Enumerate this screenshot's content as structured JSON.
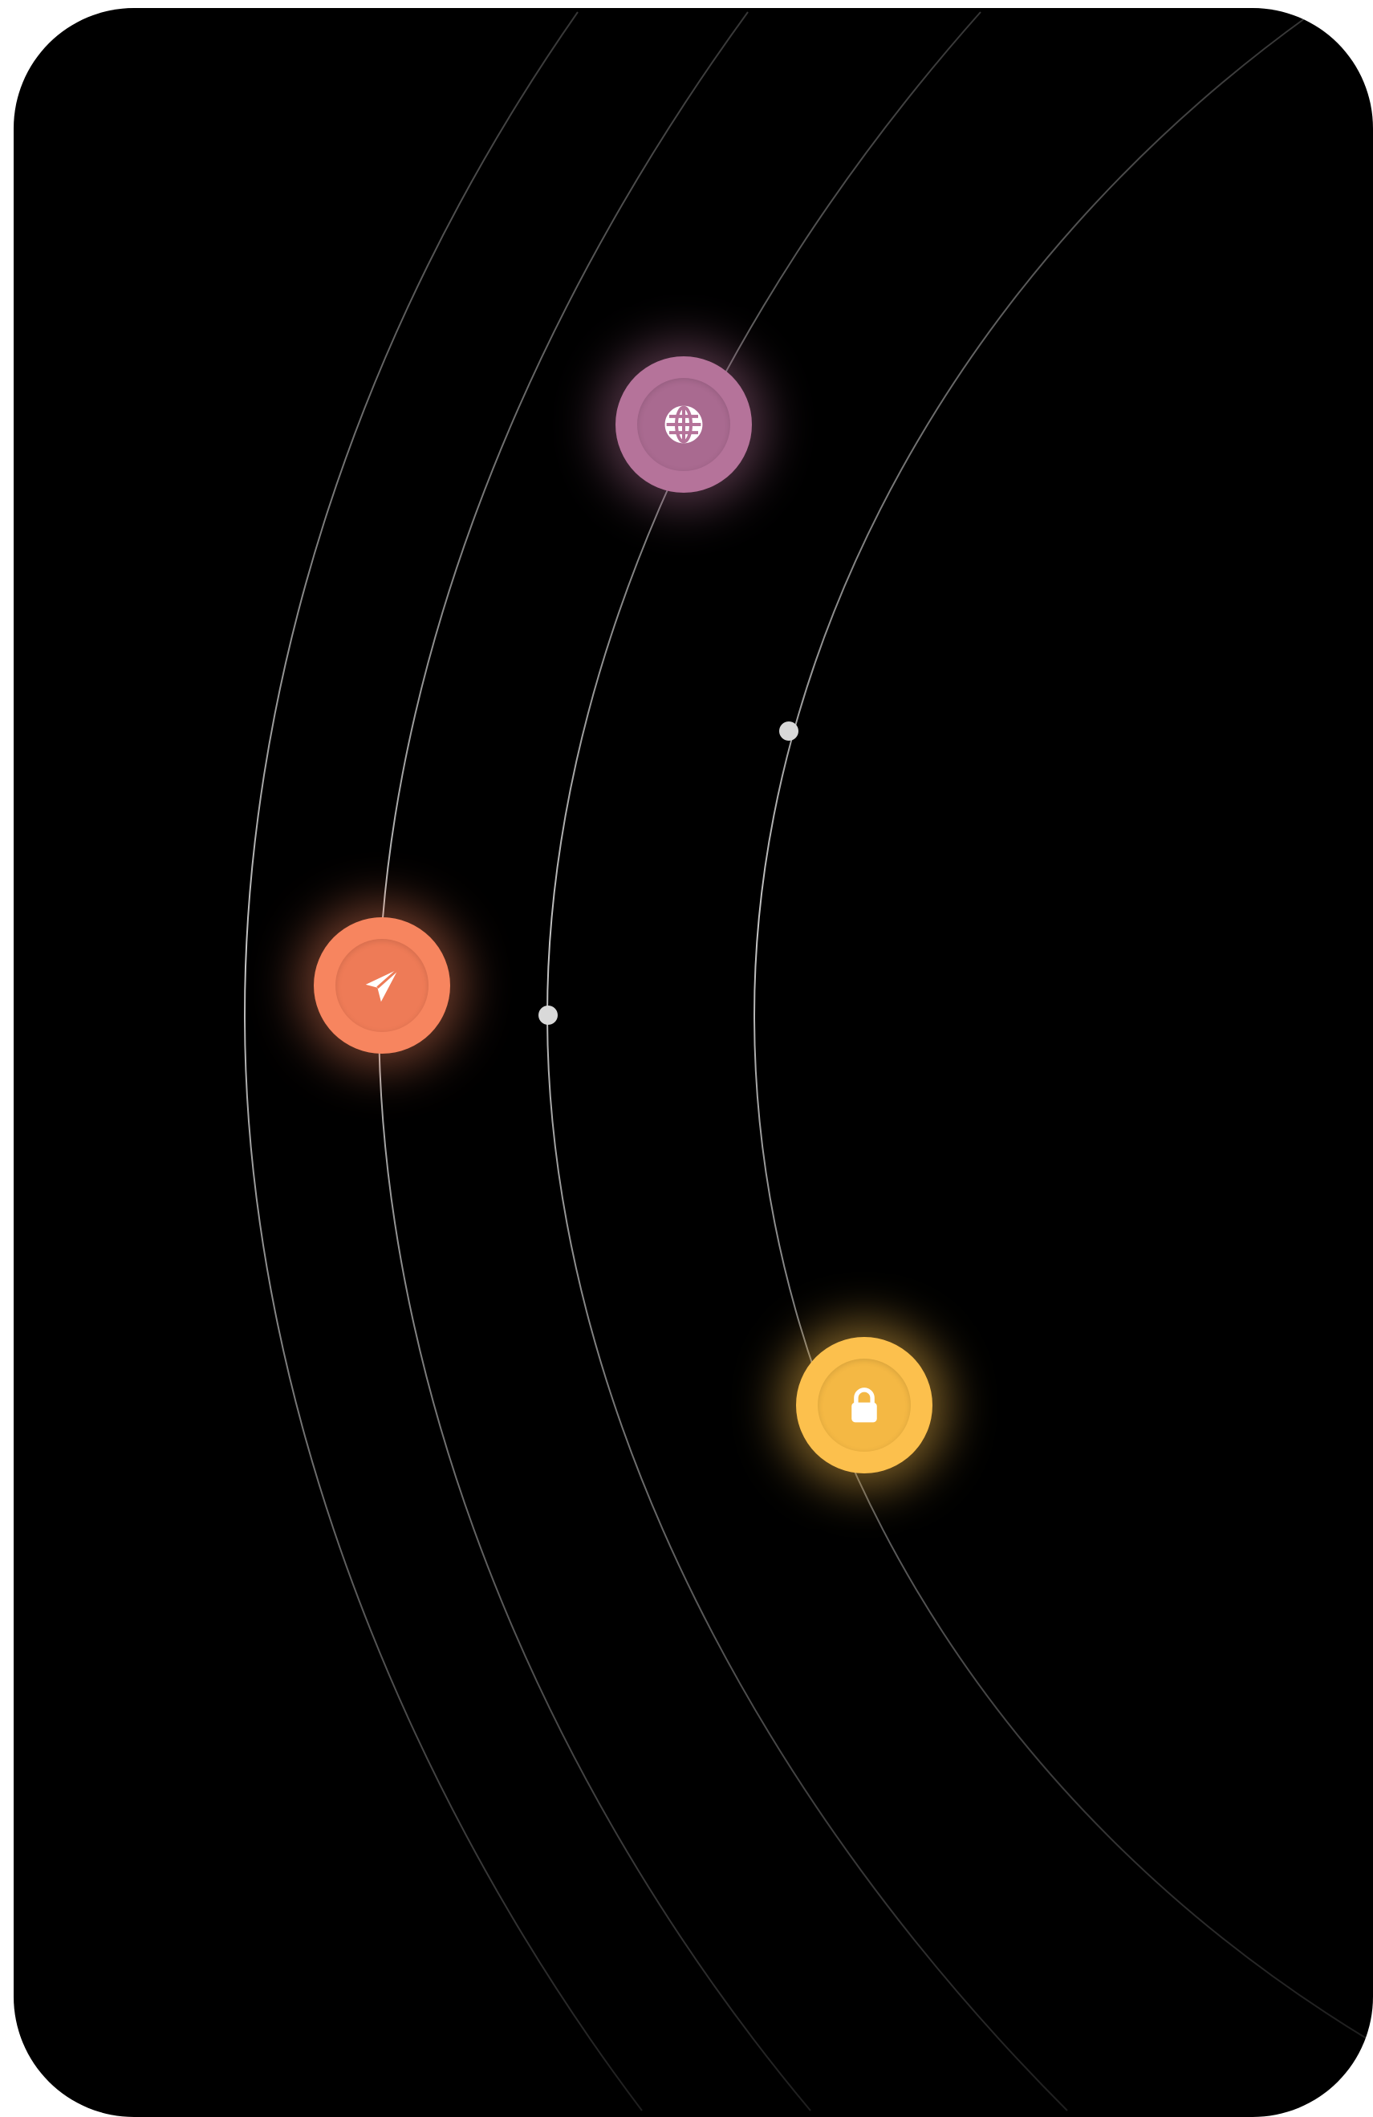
{
  "nodes": [
    {
      "id": "globe",
      "icon": "globe-icon",
      "color": "#b5739a",
      "inner_color": "#a96a90",
      "glow": "rgba(181,115,154,0.45)"
    },
    {
      "id": "send",
      "icon": "paper-plane-icon",
      "color": "#f7855f",
      "inner_color": "#ee7b57",
      "glow": "rgba(247,133,95,0.45)"
    },
    {
      "id": "lock",
      "icon": "lock-icon",
      "color": "#fcc04d",
      "inner_color": "#f4b844",
      "glow": "rgba(252,192,77,0.5)"
    }
  ],
  "colors": {
    "background": "#000000",
    "orbit_line": "#bdbdbd",
    "dot": "#d9d9d9"
  }
}
